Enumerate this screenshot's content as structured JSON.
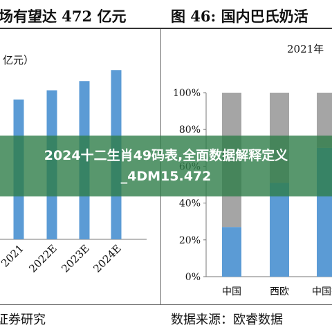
{
  "header": {
    "left_title": "场有望达 472 亿元",
    "right_title": "图 46:   国内巴氏奶活"
  },
  "footer": {
    "left_source": "证券研究",
    "right_source": "数据来源：欧睿数据"
  },
  "overlay": {
    "headline": "2024十二生肖49码表,全面数据解释定义_4DM15.472"
  },
  "colors": {
    "bar_blue": "#5b9bd5",
    "bar_gray": "#a5a5a5",
    "overlay_green": "#2e7d48"
  },
  "chart_data": [
    {
      "type": "bar",
      "title": "",
      "ylabel": "亿元）",
      "categories": [
        "2021",
        "2022E",
        "2023E",
        "2024E"
      ],
      "values": [
        380,
        405,
        430,
        460
      ],
      "ylim": [
        0,
        500
      ],
      "grid": false
    },
    {
      "type": "bar",
      "stacked": true,
      "subtitle": "2021年",
      "categories": [
        "中国",
        "西欧",
        "中国香"
      ],
      "series": [
        {
          "color": "#5b9bd5",
          "values": [
            27,
            51,
            70
          ]
        },
        {
          "color": "#a5a5a5",
          "values": [
            73,
            49,
            30
          ]
        }
      ],
      "yticks": [
        "0%",
        "20%",
        "40%",
        "60%",
        "80%",
        "100%"
      ],
      "ylim": [
        0,
        100
      ],
      "grid": false
    }
  ]
}
